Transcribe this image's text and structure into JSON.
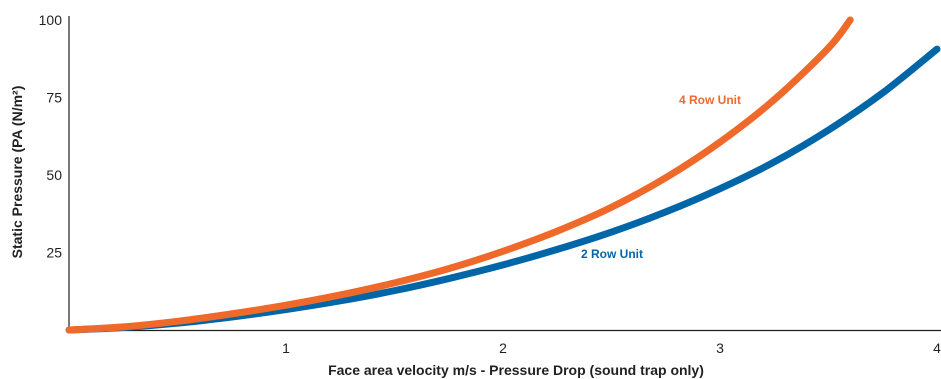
{
  "chart_data": {
    "type": "line",
    "title": "",
    "xlabel": "Face area velocity m/s - Pressure Drop  (sound trap only)",
    "ylabel": "Static Pressure (PA (N/m²)",
    "xlim": [
      0,
      4
    ],
    "ylim": [
      0,
      100
    ],
    "x_ticks": [
      "1",
      "2",
      "3",
      "4"
    ],
    "y_ticks": [
      "25",
      "50",
      "75",
      "100"
    ],
    "grid": false,
    "series": [
      {
        "name": "4 Row Unit",
        "color": "#ef6a2a",
        "x": [
          0,
          0.25,
          0.5,
          0.75,
          1.0,
          1.25,
          1.5,
          1.75,
          2.0,
          2.25,
          2.5,
          2.75,
          3.0,
          3.25,
          3.5,
          3.6
        ],
        "y": [
          0,
          1.0,
          2.8,
          5.2,
          8.0,
          11.3,
          15.2,
          19.8,
          25.4,
          31.9,
          39.6,
          49.1,
          60.6,
          74.3,
          91.0,
          100
        ]
      },
      {
        "name": "2 Row Unit",
        "color": "#0066a8",
        "x": [
          0,
          0.25,
          0.5,
          0.75,
          1.0,
          1.25,
          1.5,
          1.75,
          2.0,
          2.25,
          2.5,
          2.75,
          3.0,
          3.25,
          3.5,
          3.75,
          4.0
        ],
        "y": [
          0,
          0.8,
          2.2,
          4.2,
          6.6,
          9.4,
          12.7,
          16.6,
          21.0,
          26.0,
          31.6,
          38.1,
          45.6,
          54.2,
          64.5,
          76.5,
          90.6
        ]
      }
    ]
  }
}
